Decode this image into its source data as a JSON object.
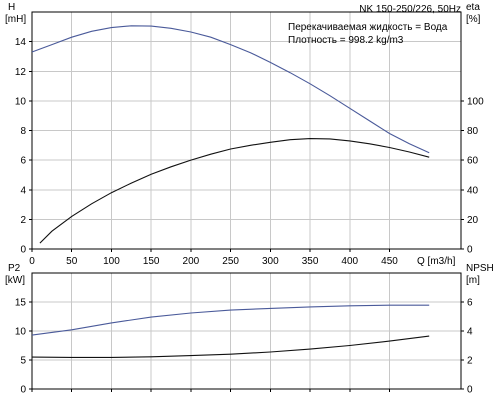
{
  "colors": {
    "blue": "#4a5a9a",
    "black": "#111111",
    "grid": "#c8c8c8"
  },
  "chart_data": [
    {
      "type": "line",
      "title": "NK 150-250/226, 50Hz",
      "annotations": [
        "Перекачиваемая жидкость = Вода",
        "Плотность = 998.2 kg/m3"
      ],
      "xlabel": "Q [m3/h]",
      "xticks": [
        "0",
        "50",
        "100",
        "150",
        "200",
        "250",
        "300",
        "350",
        "400",
        "450"
      ],
      "xlim": [
        0,
        540
      ],
      "grid": true,
      "y_left": {
        "label": "H",
        "unit": "[mH]",
        "ticks": [
          "0",
          "2",
          "4",
          "6",
          "8",
          "10",
          "12",
          "14"
        ],
        "range": [
          0,
          16
        ]
      },
      "y_right": {
        "label": "eta",
        "unit": "[%]",
        "ticks": [
          "0",
          "20",
          "40",
          "60",
          "80",
          "100"
        ],
        "range": [
          0,
          160
        ]
      },
      "series": [
        {
          "axis": "left",
          "color": "blue",
          "x": [
            0,
            25,
            50,
            75,
            100,
            125,
            150,
            175,
            200,
            225,
            250,
            275,
            300,
            325,
            350,
            375,
            400,
            425,
            450,
            475,
            500
          ],
          "y": [
            13.3,
            13.8,
            14.3,
            14.7,
            14.95,
            15.07,
            15.05,
            14.9,
            14.65,
            14.3,
            13.8,
            13.25,
            12.6,
            11.9,
            11.15,
            10.35,
            9.5,
            8.65,
            7.8,
            7.1,
            6.5
          ]
        },
        {
          "axis": "right",
          "color": "black",
          "x": [
            10,
            25,
            50,
            75,
            100,
            125,
            150,
            175,
            200,
            225,
            250,
            275,
            300,
            325,
            350,
            375,
            400,
            425,
            450,
            475,
            500
          ],
          "y": [
            4,
            12,
            22,
            30.5,
            38,
            44.5,
            50.5,
            55.5,
            60,
            64,
            67.5,
            70,
            72,
            73.8,
            74.5,
            74.3,
            73,
            71,
            68.5,
            65.5,
            62
          ]
        }
      ]
    },
    {
      "type": "line",
      "xlim": [
        0,
        540
      ],
      "grid": true,
      "y_left": {
        "label": "P2",
        "unit": "[kW]",
        "ticks": [
          "0",
          "5",
          "10",
          "15"
        ],
        "range": [
          0,
          20
        ]
      },
      "y_right": {
        "label": "NPSH",
        "unit": "[m]",
        "ticks": [
          "0",
          "2",
          "4",
          "6"
        ],
        "range": [
          0,
          8
        ]
      },
      "series": [
        {
          "axis": "left",
          "color": "blue",
          "x": [
            0,
            50,
            100,
            150,
            200,
            250,
            300,
            350,
            400,
            450,
            500
          ],
          "y": [
            9.3,
            10.2,
            11.4,
            12.4,
            13.1,
            13.6,
            13.9,
            14.15,
            14.35,
            14.45,
            14.45
          ]
        },
        {
          "axis": "right",
          "color": "black",
          "x": [
            0,
            50,
            100,
            150,
            200,
            250,
            300,
            350,
            400,
            450,
            500
          ],
          "y": [
            2.2,
            2.18,
            2.18,
            2.22,
            2.3,
            2.4,
            2.55,
            2.75,
            3.0,
            3.3,
            3.65
          ]
        }
      ]
    }
  ]
}
